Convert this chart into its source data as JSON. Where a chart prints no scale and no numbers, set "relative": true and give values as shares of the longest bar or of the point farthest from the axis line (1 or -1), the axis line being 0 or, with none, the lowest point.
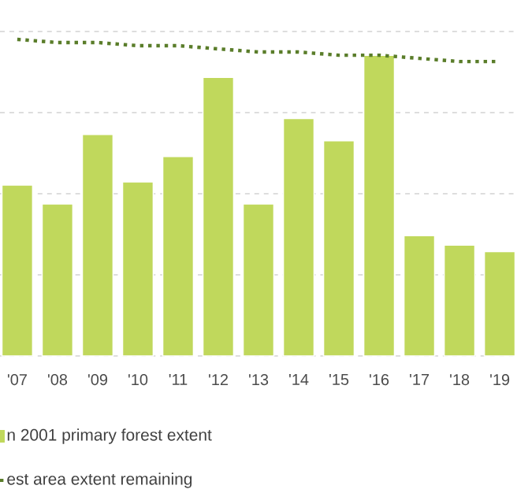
{
  "chart_data": {
    "type": "bar",
    "relative": true,
    "grid": "y",
    "legend": "bottom",
    "categories": [
      "'07",
      "'08",
      "'09",
      "'10",
      "'11",
      "'12",
      "'13",
      "'14",
      "'15",
      "'16",
      "'17",
      "'18",
      "'19"
    ],
    "series": [
      {
        "name": "n 2001 primary forest extent",
        "color": "#c0d85c",
        "values": [
          0.54,
          0.48,
          0.7,
          0.55,
          0.63,
          0.88,
          0.48,
          0.75,
          0.68,
          0.95,
          0.38,
          0.35,
          0.33
        ]
      },
      {
        "name": "est area extent remaining",
        "type": "line",
        "line_style": "dotted",
        "color": "#5a7d2a",
        "values": [
          1.0,
          0.99,
          0.99,
          0.98,
          0.98,
          0.97,
          0.96,
          0.96,
          0.95,
          0.95,
          0.94,
          0.93,
          0.93
        ]
      }
    ]
  }
}
